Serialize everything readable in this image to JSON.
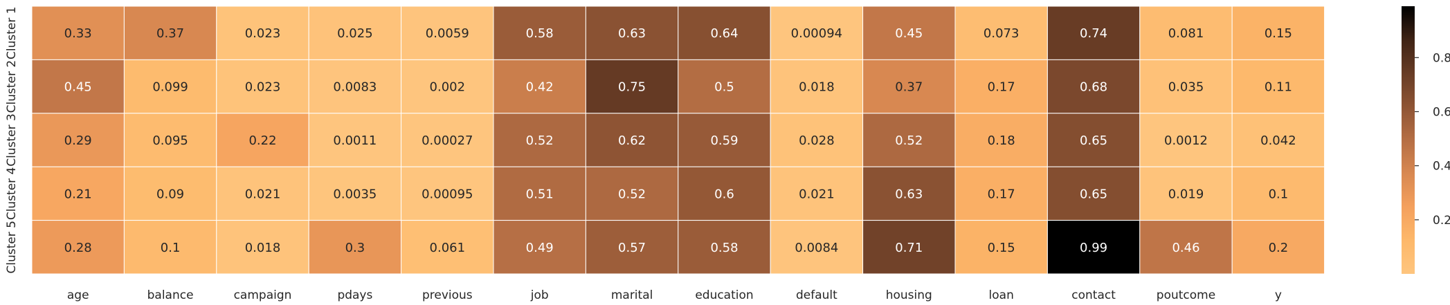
{
  "chart_data": {
    "type": "heatmap",
    "rows": [
      "Cluster 1",
      "Cluster 2",
      "Cluster 3",
      "Cluster 4",
      "Cluster 5"
    ],
    "columns": [
      "age",
      "balance",
      "campaign",
      "pdays",
      "previous",
      "job",
      "marital",
      "education",
      "default",
      "housing",
      "loan",
      "contact",
      "poutcome",
      "y"
    ],
    "values": [
      [
        0.33,
        0.37,
        0.023,
        0.025,
        0.0059,
        0.58,
        0.63,
        0.64,
        0.00094,
        0.45,
        0.073,
        0.74,
        0.081,
        0.15
      ],
      [
        0.45,
        0.099,
        0.023,
        0.0083,
        0.002,
        0.42,
        0.75,
        0.5,
        0.018,
        0.37,
        0.17,
        0.68,
        0.035,
        0.11
      ],
      [
        0.29,
        0.095,
        0.22,
        0.0011,
        0.00027,
        0.52,
        0.62,
        0.59,
        0.028,
        0.52,
        0.18,
        0.65,
        0.0012,
        0.042
      ],
      [
        0.21,
        0.09,
        0.021,
        0.0035,
        0.00095,
        0.51,
        0.52,
        0.6,
        0.021,
        0.63,
        0.17,
        0.65,
        0.019,
        0.1
      ],
      [
        0.28,
        0.1,
        0.018,
        0.3,
        0.061,
        0.49,
        0.57,
        0.58,
        0.0084,
        0.71,
        0.15,
        0.99,
        0.46,
        0.2
      ]
    ],
    "value_labels": [
      [
        "0.33",
        "0.37",
        "0.023",
        "0.025",
        "0.0059",
        "0.58",
        "0.63",
        "0.64",
        "0.00094",
        "0.45",
        "0.073",
        "0.74",
        "0.081",
        "0.15"
      ],
      [
        "0.45",
        "0.099",
        "0.023",
        "0.0083",
        "0.002",
        "0.42",
        "0.75",
        "0.5",
        "0.018",
        "0.37",
        "0.17",
        "0.68",
        "0.035",
        "0.11"
      ],
      [
        "0.29",
        "0.095",
        "0.22",
        "0.0011",
        "0.00027",
        "0.52",
        "0.62",
        "0.59",
        "0.028",
        "0.52",
        "0.18",
        "0.65",
        "0.0012",
        "0.042"
      ],
      [
        "0.21",
        "0.09",
        "0.021",
        "0.0035",
        "0.00095",
        "0.51",
        "0.52",
        "0.6",
        "0.021",
        "0.63",
        "0.17",
        "0.65",
        "0.019",
        "0.1"
      ],
      [
        "0.28",
        "0.1",
        "0.018",
        "0.3",
        "0.061",
        "0.49",
        "0.57",
        "0.58",
        "0.0084",
        "0.71",
        "0.15",
        "0.99",
        "0.46",
        "0.2"
      ]
    ],
    "vmin": 0.0,
    "vmax": 0.99,
    "colorscale": [
      "#fec57e",
      "#fdb86a",
      "#f4a05d",
      "#d88851",
      "#b56e44",
      "#8e5434",
      "#673c25",
      "#3f2315",
      "#000000"
    ],
    "colorbar_ticks": [
      "0.2",
      "0.4",
      "0.6",
      "0.8"
    ],
    "colorbar_tick_values": [
      0.2,
      0.4,
      0.6,
      0.8
    ],
    "text_colors": {
      "dark": "#262626",
      "light": "#ffffff"
    },
    "grid_line_color": "#ffffff"
  }
}
